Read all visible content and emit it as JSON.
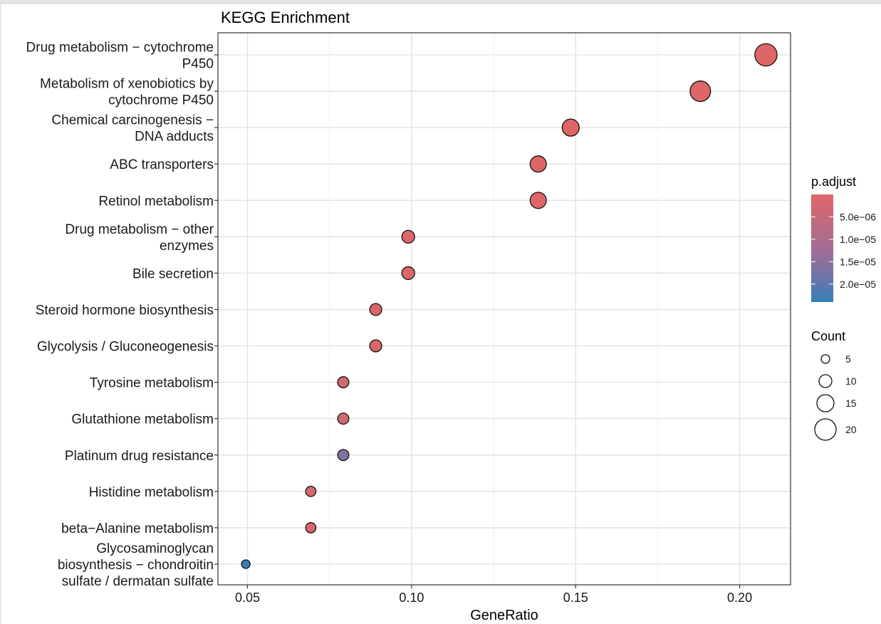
{
  "chart_data": {
    "type": "scatter",
    "title": "KEGG Enrichment",
    "xlabel": "GeneRatio",
    "ylabel": "",
    "xlim": [
      0.041,
      0.2155
    ],
    "xticks": [
      0.05,
      0.1,
      0.15,
      0.2
    ],
    "xtick_labels": [
      "0.05",
      "0.10",
      "0.15",
      "0.20"
    ],
    "grid": true,
    "legend_position": "right",
    "color_low": "#377eb8",
    "color_high": "#e06666",
    "points": [
      {
        "label": "Drug metabolism − cytochrome P450",
        "label_lines": [
          "Drug metabolism − cytochrome",
          "P450"
        ],
        "x": 0.208,
        "count": 21,
        "p_adjust": 1e-07
      },
      {
        "label": "Metabolism of xenobiotics by cytochrome P450",
        "label_lines": [
          "Metabolism of xenobiotics by",
          "cytochrome P450"
        ],
        "x": 0.188,
        "count": 19,
        "p_adjust": 1e-07
      },
      {
        "label": "Chemical carcinogenesis − DNA adducts",
        "label_lines": [
          "Chemical carcinogenesis −",
          "DNA adducts"
        ],
        "x": 0.1485,
        "count": 15,
        "p_adjust": 1e-07
      },
      {
        "label": "ABC transporters",
        "label_lines": [
          "ABC transporters"
        ],
        "x": 0.1386,
        "count": 14,
        "p_adjust": 5e-07
      },
      {
        "label": "Retinol metabolism",
        "label_lines": [
          "Retinol metabolism"
        ],
        "x": 0.1386,
        "count": 14,
        "p_adjust": 5e-07
      },
      {
        "label": "Drug metabolism − other enzymes",
        "label_lines": [
          "Drug metabolism − other",
          "enzymes"
        ],
        "x": 0.099,
        "count": 10,
        "p_adjust": 8e-07
      },
      {
        "label": "Bile secretion",
        "label_lines": [
          "Bile secretion"
        ],
        "x": 0.099,
        "count": 10,
        "p_adjust": 8e-07
      },
      {
        "label": "Steroid hormone biosynthesis",
        "label_lines": [
          "Steroid hormone biosynthesis"
        ],
        "x": 0.0891,
        "count": 9,
        "p_adjust": 1e-06
      },
      {
        "label": "Glycolysis / Gluconeogenesis",
        "label_lines": [
          "Glycolysis / Gluconeogenesis"
        ],
        "x": 0.0891,
        "count": 9,
        "p_adjust": 1e-06
      },
      {
        "label": "Tyrosine metabolism",
        "label_lines": [
          "Tyrosine metabolism"
        ],
        "x": 0.0792,
        "count": 8,
        "p_adjust": 2.5e-06
      },
      {
        "label": "Glutathione metabolism",
        "label_lines": [
          "Glutathione metabolism"
        ],
        "x": 0.0792,
        "count": 8,
        "p_adjust": 3e-06
      },
      {
        "label": "Platinum drug resistance",
        "label_lines": [
          "Platinum drug resistance"
        ],
        "x": 0.0792,
        "count": 8,
        "p_adjust": 1.6e-05
      },
      {
        "label": "Histidine metabolism",
        "label_lines": [
          "Histidine metabolism"
        ],
        "x": 0.0693,
        "count": 7,
        "p_adjust": 2e-06
      },
      {
        "label": "beta−Alanine metabolism",
        "label_lines": [
          "beta−Alanine metabolism"
        ],
        "x": 0.0693,
        "count": 7,
        "p_adjust": 2e-06
      },
      {
        "label": "Glycosaminoglycan biosynthesis − chondroitin sulfate / dermatan sulfate",
        "label_lines": [
          "Glycosaminoglycan",
          "biosynthesis − chondroitin",
          "sulfate / dermatan sulfate"
        ],
        "x": 0.0495,
        "count": 5,
        "p_adjust": 2.4e-05
      }
    ],
    "legend_color": {
      "title": "p.adjust",
      "range": [
        0,
        2.4e-05
      ],
      "ticks": [
        {
          "value": 5e-06,
          "label": "5.0e−06"
        },
        {
          "value": 1e-05,
          "label": "1.0e−05"
        },
        {
          "value": 1.5e-05,
          "label": "1.5e−05"
        },
        {
          "value": 2e-05,
          "label": "2.0e−05"
        }
      ]
    },
    "legend_size": {
      "title": "Count",
      "entries": [
        {
          "value": 5,
          "label": "5"
        },
        {
          "value": 10,
          "label": "10"
        },
        {
          "value": 15,
          "label": "15"
        },
        {
          "value": 20,
          "label": "20"
        }
      ]
    }
  }
}
